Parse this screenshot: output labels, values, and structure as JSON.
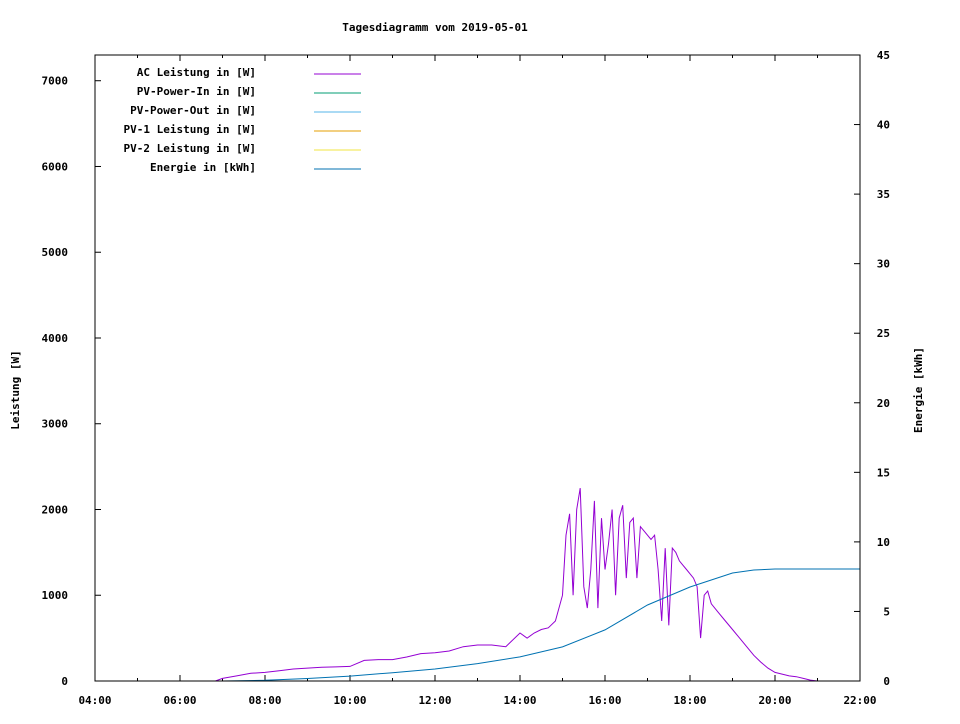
{
  "chart_data": {
    "type": "line",
    "title": "Tagesdiagramm vom 2019-05-01",
    "ylabel": "Leistung [W]",
    "y2label": "Energie [kWh]",
    "xlim": [
      "04:00",
      "22:00"
    ],
    "ylim": [
      0,
      7300
    ],
    "y2lim": [
      0,
      45
    ],
    "xticks": [
      "04:00",
      "06:00",
      "08:00",
      "10:00",
      "12:00",
      "14:00",
      "16:00",
      "18:00",
      "20:00",
      "22:00"
    ],
    "yticks": [
      "0",
      "1000",
      "2000",
      "3000",
      "4000",
      "5000",
      "6000",
      "7000"
    ],
    "y2ticks": [
      "0",
      "5",
      "10",
      "15",
      "20",
      "25",
      "30",
      "35",
      "40",
      "45"
    ],
    "grid": false,
    "legend_position": "top-left",
    "series": [
      {
        "name": "AC Leistung in [W]",
        "color": "#9400d3",
        "axis": "y",
        "x": [
          "06:50",
          "07:00",
          "07:20",
          "07:40",
          "08:00",
          "08:20",
          "08:40",
          "09:00",
          "09:20",
          "09:40",
          "10:00",
          "10:20",
          "10:40",
          "11:00",
          "11:20",
          "11:40",
          "12:00",
          "12:20",
          "12:40",
          "13:00",
          "13:20",
          "13:40",
          "14:00",
          "14:10",
          "14:20",
          "14:30",
          "14:40",
          "14:50",
          "15:00",
          "15:05",
          "15:10",
          "15:15",
          "15:20",
          "15:25",
          "15:30",
          "15:35",
          "15:40",
          "15:45",
          "15:50",
          "15:55",
          "16:00",
          "16:05",
          "16:10",
          "16:15",
          "16:20",
          "16:25",
          "16:30",
          "16:35",
          "16:40",
          "16:45",
          "16:50",
          "16:55",
          "17:00",
          "17:05",
          "17:10",
          "17:15",
          "17:20",
          "17:25",
          "17:30",
          "17:35",
          "17:40",
          "17:45",
          "17:50",
          "17:55",
          "18:00",
          "18:05",
          "18:10",
          "18:15",
          "18:20",
          "18:25",
          "18:30",
          "18:40",
          "18:50",
          "19:00",
          "19:10",
          "19:20",
          "19:30",
          "19:40",
          "19:50",
          "20:00",
          "20:10",
          "20:20",
          "20:30",
          "20:40",
          "20:50",
          "21:00"
        ],
        "values": [
          0,
          30,
          60,
          90,
          100,
          120,
          140,
          150,
          160,
          165,
          170,
          240,
          250,
          250,
          280,
          320,
          330,
          350,
          400,
          420,
          420,
          400,
          560,
          500,
          560,
          600,
          620,
          700,
          1000,
          1700,
          1950,
          1000,
          2000,
          2250,
          1100,
          850,
          1300,
          2100,
          850,
          1900,
          1300,
          1600,
          2000,
          1000,
          1900,
          2050,
          1200,
          1850,
          1900,
          1200,
          1800,
          1750,
          1700,
          1650,
          1700,
          1300,
          700,
          1550,
          650,
          1550,
          1500,
          1400,
          1350,
          1300,
          1250,
          1200,
          1100,
          500,
          1000,
          1050,
          900,
          800,
          700,
          600,
          500,
          400,
          300,
          220,
          150,
          100,
          80,
          60,
          50,
          30,
          10,
          0
        ]
      },
      {
        "name": "PV-Power-In in [W]",
        "color": "#009e73",
        "axis": "y",
        "x": [],
        "values": []
      },
      {
        "name": "PV-Power-Out in [W]",
        "color": "#56b4e9",
        "axis": "y",
        "x": [],
        "values": []
      },
      {
        "name": "PV-1 Leistung in [W]",
        "color": "#e69f00",
        "axis": "y",
        "x": [],
        "values": []
      },
      {
        "name": "PV-2 Leistung in [W]",
        "color": "#f0e442",
        "axis": "y",
        "x": [],
        "values": []
      },
      {
        "name": "Energie in [kWh]",
        "color": "#0072b2",
        "axis": "y2",
        "x": [
          "07:00",
          "08:00",
          "09:00",
          "10:00",
          "11:00",
          "12:00",
          "13:00",
          "14:00",
          "15:00",
          "16:00",
          "17:00",
          "18:00",
          "19:00",
          "19:30",
          "20:00",
          "22:00"
        ],
        "values": [
          0,
          0.05,
          0.18,
          0.35,
          0.6,
          0.86,
          1.25,
          1.73,
          2.45,
          3.67,
          5.46,
          6.76,
          7.76,
          7.98,
          8.05,
          8.05
        ]
      }
    ]
  }
}
